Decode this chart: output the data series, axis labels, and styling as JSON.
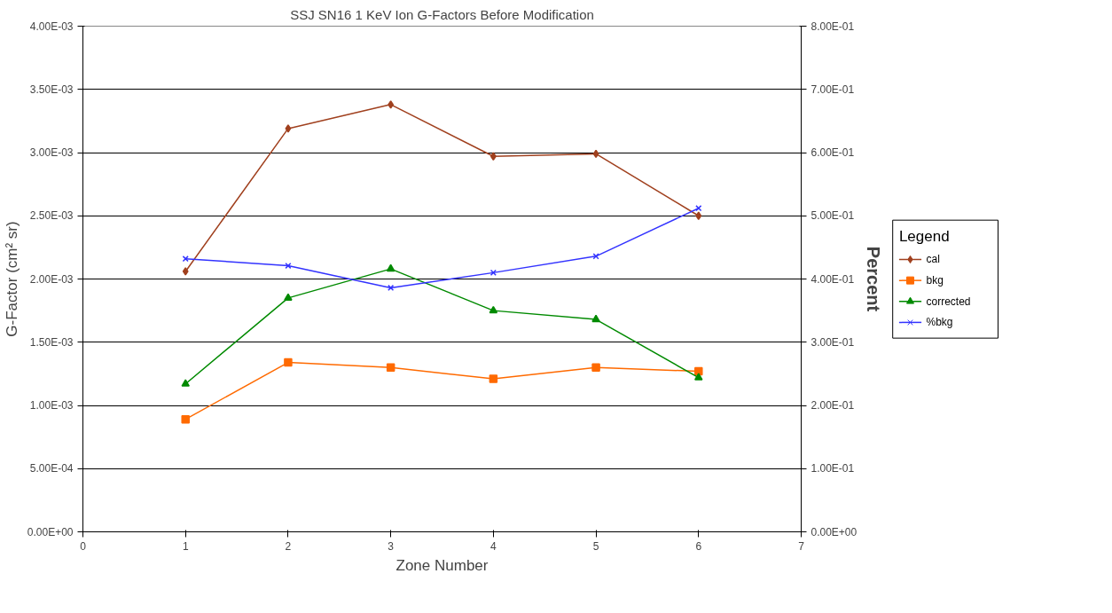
{
  "chart_data": {
    "type": "line",
    "title": "SSJ SN16 1 KeV Ion G-Factors Before Modification",
    "xlabel": "Zone Number",
    "ylabel": "G-Factor (cm² sr)",
    "y2label": "Percent",
    "legend_title": "Legend",
    "legend": "right",
    "grid": "y",
    "x": [
      1,
      2,
      3,
      4,
      5,
      6
    ],
    "series": [
      {
        "name": "cal",
        "color": "#a0401e",
        "marker": "diamond",
        "values": [
          0.00206,
          0.00319,
          0.00338,
          0.00297,
          0.00299,
          0.0025
        ]
      },
      {
        "name": "bkg",
        "color": "#ff6a00",
        "marker": "square",
        "values": [
          0.00089,
          0.00134,
          0.0013,
          0.00121,
          0.0013,
          0.00127
        ]
      },
      {
        "name": "corrected",
        "color": "#008a00",
        "marker": "triangle",
        "values": [
          0.00117,
          0.00185,
          0.00208,
          0.00175,
          0.00168,
          0.00122
        ]
      },
      {
        "name": "%bkg",
        "color": "#3333ff",
        "marker": "cross",
        "axis": "y2",
        "values": [
          0.432,
          0.421,
          0.386,
          0.41,
          0.436,
          0.512
        ]
      }
    ],
    "xlim": [
      0,
      7
    ],
    "xticks": [
      0,
      1,
      2,
      3,
      4,
      5,
      6,
      7
    ],
    "ylim": [
      0,
      0.004
    ],
    "yticks": [
      {
        "value": 0,
        "label": "0.00E+00"
      },
      {
        "value": 0.0005,
        "label": "5.00E-04"
      },
      {
        "value": 0.001,
        "label": "1.00E-03"
      },
      {
        "value": 0.0015,
        "label": "1.50E-03"
      },
      {
        "value": 0.002,
        "label": "2.00E-03"
      },
      {
        "value": 0.0025,
        "label": "2.50E-03"
      },
      {
        "value": 0.003,
        "label": "3.00E-03"
      },
      {
        "value": 0.0035,
        "label": "3.50E-03"
      },
      {
        "value": 0.004,
        "label": "4.00E-03"
      }
    ],
    "y2lim": [
      0,
      0.8
    ],
    "y2ticks": [
      {
        "value": 0,
        "label": "0.00E+00"
      },
      {
        "value": 0.1,
        "label": "1.00E-01"
      },
      {
        "value": 0.2,
        "label": "2.00E-01"
      },
      {
        "value": 0.3,
        "label": "3.00E-01"
      },
      {
        "value": 0.4,
        "label": "4.00E-01"
      },
      {
        "value": 0.5,
        "label": "5.00E-01"
      },
      {
        "value": 0.6,
        "label": "6.00E-01"
      },
      {
        "value": 0.7,
        "label": "7.00E-01"
      },
      {
        "value": 0.8,
        "label": "8.00E-01"
      }
    ],
    "line_style": "solid"
  }
}
